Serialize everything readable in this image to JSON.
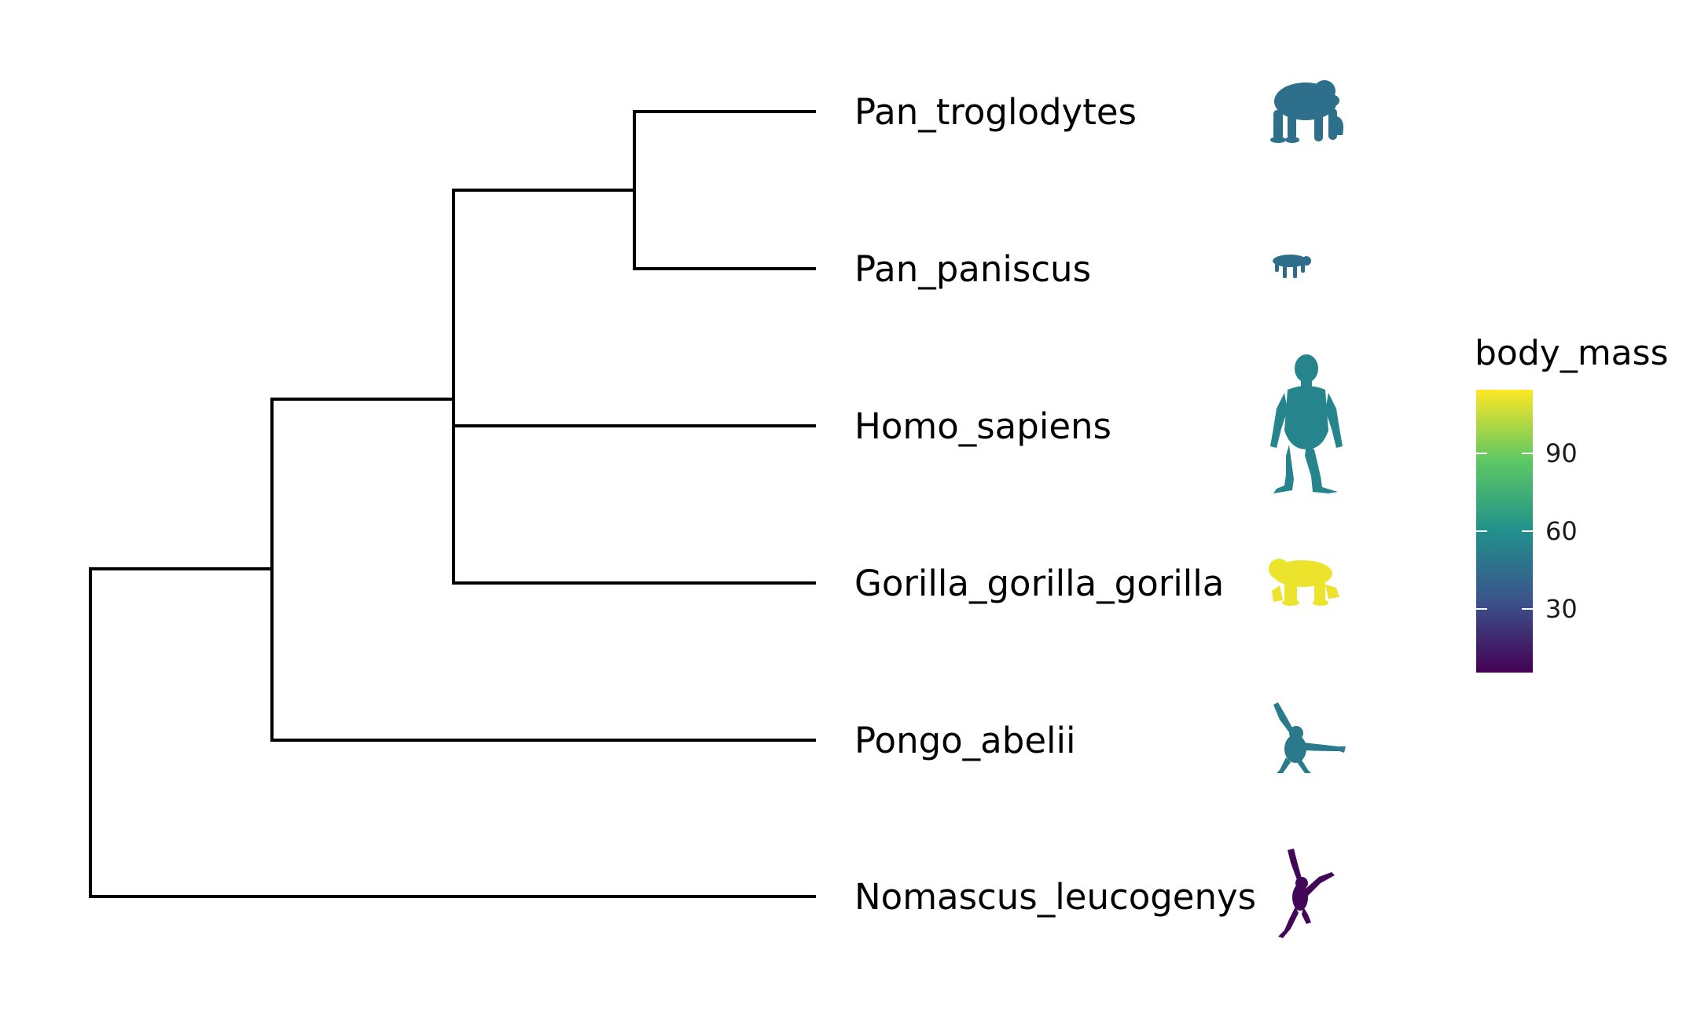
{
  "tree": {
    "tips": [
      {
        "name": "Pan_troglodytes",
        "body_mass": 46
      },
      {
        "name": "Pan_paniscus",
        "body_mass": 45
      },
      {
        "name": "Homo_sapiens",
        "body_mass": 55
      },
      {
        "name": "Gorilla_gorilla_gorilla",
        "body_mass": 112
      },
      {
        "name": "Pongo_abelii",
        "body_mass": 50
      },
      {
        "name": "Nomascus_leucogenys",
        "body_mass": 7
      }
    ],
    "silhouette_icons": [
      "chimpanzee-icon",
      "bonobo-icon",
      "human-icon",
      "gorilla-icon",
      "orangutan-icon",
      "gibbon-icon"
    ]
  },
  "legend": {
    "title": "body_mass",
    "ticks": [
      {
        "label": "90",
        "value": 90
      },
      {
        "label": "60",
        "value": 60
      },
      {
        "label": "30",
        "value": 30
      }
    ],
    "range": [
      5,
      115
    ],
    "palette": [
      "#440154",
      "#3b528b",
      "#21908c",
      "#5dc863",
      "#fde725"
    ]
  }
}
